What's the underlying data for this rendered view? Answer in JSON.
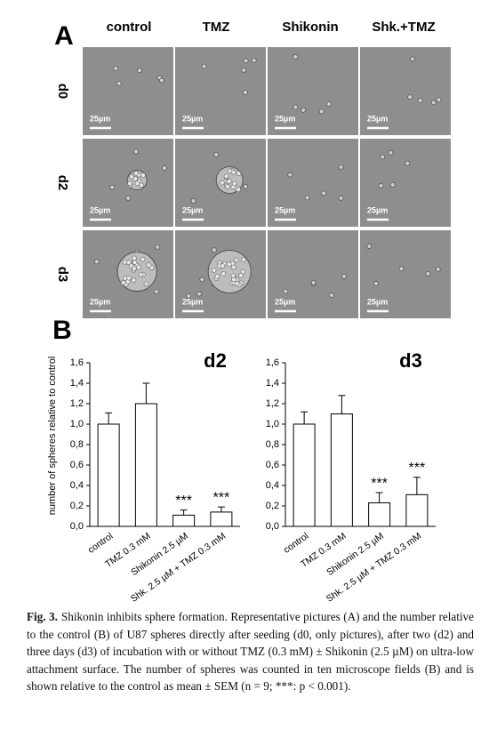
{
  "panel_a": {
    "label": "A",
    "columns": [
      "control",
      "TMZ",
      "Shikonin",
      "Shk.+TMZ"
    ],
    "rows": [
      "d0",
      "d2",
      "d3"
    ],
    "scale_bar": "25µm"
  },
  "panel_b": {
    "label": "B"
  },
  "chart_data": [
    {
      "type": "bar",
      "title": "d2",
      "y_label": "number of spheres relative to control",
      "categories": [
        "control",
        "TMZ 0.3 mM",
        "Shikonin 2.5 µM",
        "Shk. 2.5 µM + TMZ 0.3 mM"
      ],
      "values": [
        1.0,
        1.2,
        0.11,
        0.14
      ],
      "errors": [
        0.11,
        0.2,
        0.05,
        0.05
      ],
      "annotations": [
        null,
        null,
        "***",
        "***"
      ],
      "color": "#ffffff",
      "ylim": [
        0,
        1.6
      ],
      "yticks": [
        {
          "value": 0,
          "label": "0,0"
        },
        {
          "value": 0.2,
          "label": "0,2"
        },
        {
          "value": 0.4,
          "label": "0,4"
        },
        {
          "value": 0.6,
          "label": "0,6"
        },
        {
          "value": 0.8,
          "label": "0,8"
        },
        {
          "value": 1.0,
          "label": "1,0"
        },
        {
          "value": 1.2,
          "label": "1,2"
        },
        {
          "value": 1.4,
          "label": "1,4"
        },
        {
          "value": 1.6,
          "label": "1,6"
        }
      ]
    },
    {
      "type": "bar",
      "title": "d3",
      "categories": [
        "control",
        "TMZ 0.3 mM",
        "Shikonin 2.5 µM",
        "Shk. 2.5 µM + TMZ 0.3 mM"
      ],
      "values": [
        1.0,
        1.1,
        0.23,
        0.31
      ],
      "errors": [
        0.12,
        0.18,
        0.1,
        0.17
      ],
      "annotations": [
        null,
        null,
        "***",
        "***"
      ],
      "color": "#ffffff",
      "ylim": [
        0,
        1.6
      ],
      "yticks": [
        {
          "value": 0,
          "label": "0,0"
        },
        {
          "value": 0.2,
          "label": "0,2"
        },
        {
          "value": 0.4,
          "label": "0,4"
        },
        {
          "value": 0.6,
          "label": "0,6"
        },
        {
          "value": 0.8,
          "label": "0,8"
        },
        {
          "value": 1.0,
          "label": "1,0"
        },
        {
          "value": 1.2,
          "label": "1,2"
        },
        {
          "value": 1.4,
          "label": "1,4"
        },
        {
          "value": 1.6,
          "label": "1,6"
        }
      ]
    }
  ],
  "caption": {
    "label": "Fig. 3.",
    "text": "Shikonin inhibits sphere formation. Representative pictures (A) and the number relative to the control (B) of U87 spheres directly after seeding (d0, only pictures), after two (d2) and three days (d3) of incubation with or without TMZ (0.3 mM) ± Shikonin (2.5 µM) on ultra-low attachment surface. The number of spheres was counted in ten microscope fields (B) and is shown relative to the control as mean ± SEM (n = 9; ***: p < 0.001)."
  }
}
